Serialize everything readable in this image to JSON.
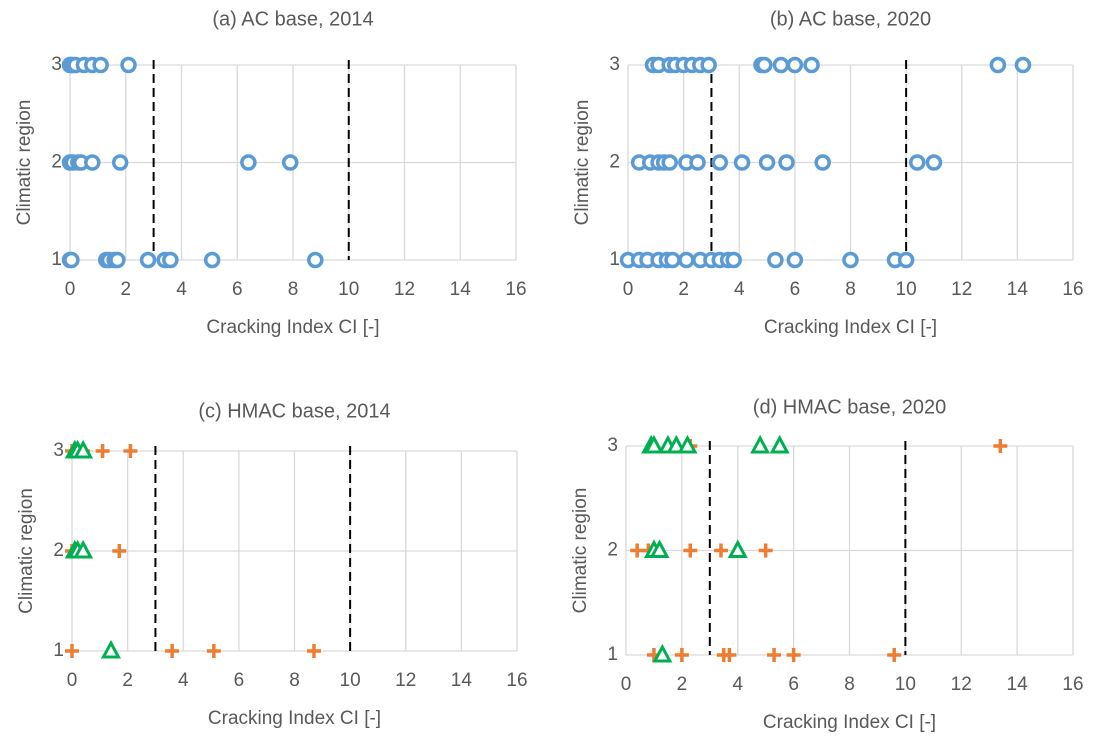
{
  "chart_data": [
    {
      "type": "scatter",
      "title": "(a) AC base, 2014",
      "xlabel": "Cracking Index  CI [-]",
      "ylabel": "Climatic region",
      "xlim": [
        0,
        16
      ],
      "xticks": [
        0,
        2,
        4,
        6,
        8,
        10,
        12,
        14,
        16
      ],
      "ylim": [
        1,
        3
      ],
      "yticks": [
        1,
        2,
        3
      ],
      "grid": true,
      "vlines": [
        3,
        10
      ],
      "series": [
        {
          "color": "#5b9bd5",
          "marker": "circle",
          "x": [
            0,
            0.05,
            0.1,
            0.2,
            0.5,
            0.8,
            1.1,
            2.1,
            0,
            0.1,
            0.3,
            0.4,
            0.8,
            1.8,
            6.4,
            7.9,
            0,
            0.05,
            1.3,
            1.4,
            1.6,
            1.7,
            2.8,
            3.4,
            3.6,
            5.1,
            8.8
          ],
          "values": [
            3,
            3,
            3,
            3,
            3,
            3,
            3,
            3,
            2,
            2,
            2,
            2,
            2,
            2,
            2,
            2,
            1,
            1,
            1,
            1,
            1,
            1,
            1,
            1,
            1,
            1,
            1
          ]
        }
      ]
    },
    {
      "type": "scatter",
      "title": "(b) AC base, 2020",
      "xlabel": "Cracking Index  CI [-]",
      "ylabel": "Climatic region",
      "xlim": [
        0,
        16
      ],
      "xticks": [
        0,
        2,
        4,
        6,
        8,
        10,
        12,
        14,
        16
      ],
      "ylim": [
        1,
        3
      ],
      "yticks": [
        1,
        2,
        3
      ],
      "grid": true,
      "vlines": [
        3,
        10
      ],
      "series": [
        {
          "color": "#5b9bd5",
          "marker": "circle",
          "x": [
            0.9,
            1.1,
            1.5,
            1.7,
            2.0,
            2.3,
            2.6,
            2.9,
            4.8,
            4.9,
            5.5,
            6.0,
            6.6,
            13.3,
            14.2,
            0.4,
            0.8,
            1.1,
            1.3,
            1.5,
            2.1,
            2.5,
            3.3,
            4.1,
            5.0,
            5.7,
            7.0,
            10.4,
            11.0,
            0.0,
            0.4,
            0.7,
            1.1,
            1.4,
            1.6,
            2.1,
            2.6,
            3.0,
            3.3,
            3.6,
            3.8,
            5.3,
            6.0,
            8.0,
            9.6,
            10.0
          ],
          "values": [
            3,
            3,
            3,
            3,
            3,
            3,
            3,
            3,
            3,
            3,
            3,
            3,
            3,
            3,
            3,
            2,
            2,
            2,
            2,
            2,
            2,
            2,
            2,
            2,
            2,
            2,
            2,
            2,
            2,
            1,
            1,
            1,
            1,
            1,
            1,
            1,
            1,
            1,
            1,
            1,
            1,
            1,
            1,
            1,
            1,
            1
          ]
        }
      ]
    },
    {
      "type": "scatter",
      "title": "(c) HMAC base, 2014",
      "xlabel": "Cracking Index  CI [-]",
      "ylabel": "Climatic region",
      "xlim": [
        0,
        16
      ],
      "xticks": [
        0,
        2,
        4,
        6,
        8,
        10,
        12,
        14,
        16
      ],
      "ylim": [
        1,
        3
      ],
      "yticks": [
        1,
        2,
        3
      ],
      "grid": true,
      "vlines": [
        3,
        10
      ],
      "series": [
        {
          "color": "#ed7d31",
          "marker": "plus",
          "x": [
            0.0,
            0.4,
            1.1,
            2.1,
            0.0,
            1.7,
            0.0,
            3.6,
            5.1,
            8.7
          ],
          "values": [
            3,
            3,
            3,
            3,
            2,
            2,
            1,
            1,
            1,
            1
          ]
        },
        {
          "color": "#00b050",
          "marker": "triangle",
          "x": [
            0.1,
            0.2,
            0.4,
            0.1,
            0.2,
            0.4,
            1.4
          ],
          "values": [
            3,
            3,
            3,
            2,
            2,
            2,
            1
          ]
        }
      ]
    },
    {
      "type": "scatter",
      "title": "(d) HMAC base, 2020",
      "xlabel": "Cracking Index  CI [-]",
      "ylabel": "Climatic region",
      "xlim": [
        0,
        16
      ],
      "xticks": [
        0,
        2,
        4,
        6,
        8,
        10,
        12,
        14,
        16
      ],
      "ylim": [
        1,
        3
      ],
      "yticks": [
        1,
        2,
        3
      ],
      "grid": true,
      "vlines": [
        3,
        10
      ],
      "series": [
        {
          "color": "#ed7d31",
          "marker": "plus",
          "x": [
            2.3,
            13.4,
            0.4,
            0.8,
            2.3,
            3.4,
            5.0,
            1.0,
            2.0,
            3.5,
            3.7,
            5.3,
            6.0,
            9.6
          ],
          "values": [
            3,
            3,
            2,
            2,
            2,
            2,
            2,
            1,
            1,
            1,
            1,
            1,
            1,
            1
          ]
        },
        {
          "color": "#00b050",
          "marker": "triangle",
          "x": [
            0.9,
            1.0,
            1.5,
            1.8,
            2.2,
            4.8,
            5.5,
            1.0,
            1.2,
            4.0,
            1.3
          ],
          "values": [
            3,
            3,
            3,
            3,
            3,
            3,
            3,
            2,
            2,
            2,
            1
          ]
        }
      ]
    }
  ]
}
